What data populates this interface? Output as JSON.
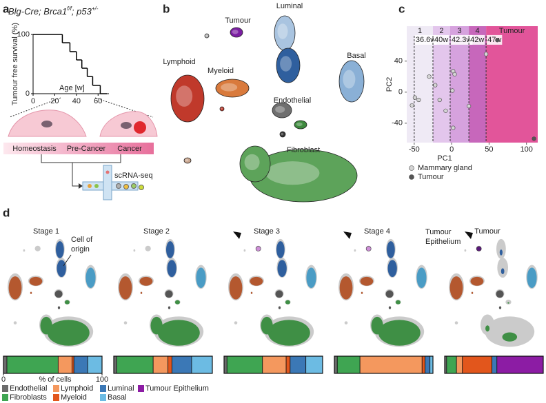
{
  "panel_letters": [
    "a",
    "b",
    "c",
    "d"
  ],
  "chart_data": [
    {
      "type": "step",
      "title_parts": [
        "Blg-Cre; Brca1",
        "f/f",
        "; p53",
        "+/-"
      ],
      "ylabel": "Tumour free survival (%)",
      "xlabel": "Age [w]",
      "x": [
        0,
        27,
        34,
        40,
        45,
        50,
        55,
        62
      ],
      "values": [
        100,
        86,
        71,
        57,
        43,
        29,
        14,
        0
      ],
      "xlim": [
        0,
        70
      ],
      "ylim": [
        0,
        100
      ],
      "xticks": [
        0,
        20,
        40,
        60
      ],
      "yticks": [
        0,
        100
      ],
      "color": "#000000"
    },
    {
      "type": "scatter",
      "xlabel": "PC1",
      "ylabel": "PC2",
      "xlim": [
        -60,
        115
      ],
      "ylim": [
        -65,
        85
      ],
      "xticks": [
        -50,
        0,
        50,
        100
      ],
      "yticks": [
        -40,
        0,
        40
      ],
      "stages": [
        {
          "label": "1",
          "weeks": "36.6w",
          "from": -60,
          "to": -25,
          "marker": -50,
          "color": "#efeaf5"
        },
        {
          "label": "2",
          "weeks": "40w",
          "from": -25,
          "to": -2,
          "marker": -25,
          "color": "#e3c6ec"
        },
        {
          "label": "3",
          "weeks": "42.3w",
          "from": -2,
          "to": 23,
          "marker": -2,
          "color": "#d6a2de"
        },
        {
          "label": "4",
          "weeks": "42w",
          "from": 23,
          "to": 46,
          "marker": 23,
          "color": "#c767bb"
        },
        {
          "label": "Tumour",
          "weeks": "47w",
          "from": 46,
          "to": 115,
          "marker": 46,
          "color": "#e2559a"
        }
      ],
      "series": [
        {
          "name": "Mammary gland",
          "color": "#d4d4d4",
          "x": [
            -49,
            -53,
            -44,
            -30,
            -22,
            -16,
            -8,
            2,
            4,
            1,
            2,
            23,
            46
          ],
          "values": [
            -7,
            -17,
            -10,
            20,
            9,
            -10,
            -24,
            27,
            23,
            2,
            -46,
            -18,
            49
          ]
        },
        {
          "name": "Tumour",
          "color": "#555555",
          "x": [
            61,
            110
          ],
          "values": [
            67,
            -60
          ]
        }
      ]
    },
    {
      "type": "stacked_bar",
      "categories": [
        "Stage 1",
        "Stage 2",
        "Stage 3",
        "Stage 4",
        "Tumour"
      ],
      "xlim": [
        0,
        100
      ],
      "xticks": [
        0,
        100
      ],
      "xlabel": "% of cells",
      "series": [
        {
          "name": "Endothelial",
          "color": "#6b6b6b",
          "values": [
            3.5,
            3,
            3,
            3,
            2
          ]
        },
        {
          "name": "Fibroblasts",
          "color": "#3fa552",
          "values": [
            52,
            37,
            36,
            23,
            10
          ]
        },
        {
          "name": "Lymphoid",
          "color": "#f4985e",
          "values": [
            14,
            15,
            24,
            63,
            6
          ]
        },
        {
          "name": "Myeloid",
          "color": "#e2561c",
          "values": [
            2,
            4,
            4,
            3,
            30
          ]
        },
        {
          "name": "Luminal",
          "color": "#3b78b6",
          "values": [
            14,
            20,
            16,
            5,
            5
          ]
        },
        {
          "name": "Basal",
          "color": "#6cbbe3",
          "values": [
            14.5,
            21,
            17,
            3,
            0
          ]
        },
        {
          "name": "Tumour Epithelium",
          "color": "#8c1ca4",
          "values": [
            0,
            0,
            0,
            0,
            47
          ]
        }
      ]
    }
  ],
  "diagram": {
    "stages": [
      "Homeostasis",
      "Pre-Cancer",
      "Cancer"
    ],
    "method": "scRNA-seq"
  },
  "umap": {
    "labels": [
      {
        "text": "Tumour",
        "color": "#8e2fa3"
      },
      {
        "text": "Luminal",
        "color": "#4a84c2"
      },
      {
        "text": "Basal",
        "color": "#4a84c2"
      },
      {
        "text": "Lymphoid",
        "color": "#e0601e"
      },
      {
        "text": "Myeloid",
        "color": "#e0601e"
      },
      {
        "text": "Endothelial",
        "color": "#777777"
      },
      {
        "text": "Fibroblast",
        "color": "#2e9a4a"
      }
    ]
  },
  "annotations": {
    "cell_of_origin": [
      "Cell of",
      "origin"
    ],
    "tumour_epithelium": [
      "Tumour",
      "Epithelium"
    ]
  }
}
